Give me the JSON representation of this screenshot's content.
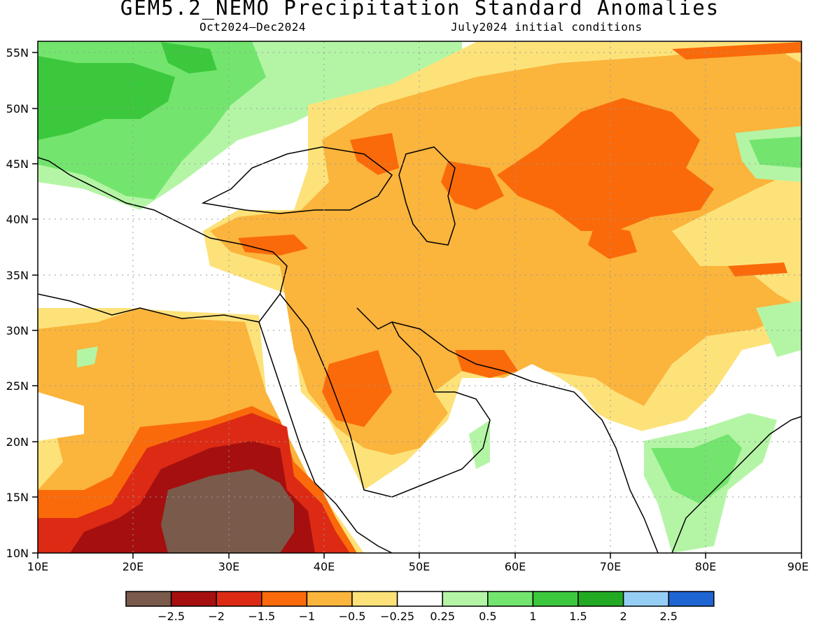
{
  "title": "GEM5.2_NEMO Precipitation Standard Anomalies",
  "period": "Oct2024–Dec2024",
  "init": "July2024 initial conditions",
  "lon_ticks": [
    "10E",
    "20E",
    "30E",
    "40E",
    "50E",
    "60E",
    "70E",
    "80E",
    "90E"
  ],
  "lat_ticks": [
    "55N",
    "50N",
    "45N",
    "40N",
    "35N",
    "30N",
    "25N",
    "20N",
    "15N",
    "10N"
  ],
  "colorbar": {
    "colors": [
      "#7a5a4a",
      "#a50f0f",
      "#dc2a14",
      "#fa6a0a",
      "#fbb43c",
      "#fde27a",
      "#ffffff",
      "#b4f5a5",
      "#73e56e",
      "#3cc83c",
      "#22aa22",
      "#96cdf5",
      "#1e64d2"
    ],
    "labels": [
      "−2.5",
      "−2",
      "−1.5",
      "−1",
      "−0.5",
      "−0.25",
      "0.25",
      "0.5",
      "1",
      "1.5",
      "2",
      "2.5"
    ]
  },
  "map_colors": {
    "brown": "#7a5a4a",
    "dark_red": "#a50f0f",
    "red": "#dc2a14",
    "orange_dark": "#fa6a0a",
    "orange": "#fbb43c",
    "yellow": "#fde27a",
    "white": "#ffffff",
    "light_green": "#b4f5a5",
    "green": "#73e56e",
    "mid_green": "#3cc83c"
  }
}
